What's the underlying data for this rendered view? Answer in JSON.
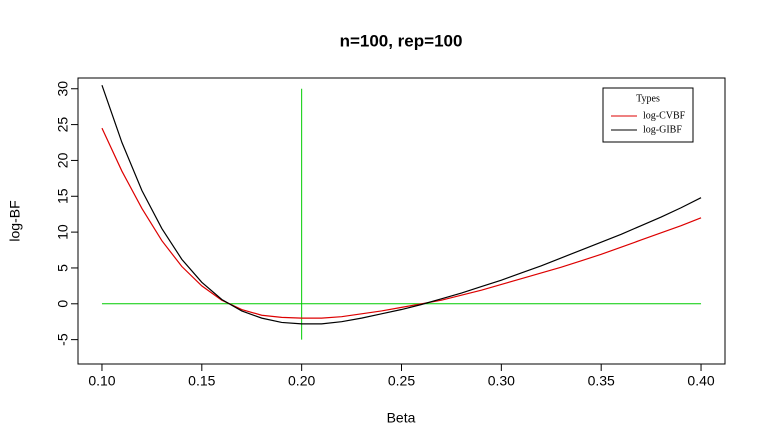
{
  "chart_data": {
    "type": "line",
    "title": "n=100, rep=100",
    "x_label": "Beta",
    "y_label": "log-BF",
    "x": [
      0.1,
      0.11,
      0.12,
      0.13,
      0.14,
      0.15,
      0.16,
      0.17,
      0.18,
      0.19,
      0.2,
      0.21,
      0.22,
      0.23,
      0.24,
      0.25,
      0.26,
      0.27,
      0.28,
      0.29,
      0.3,
      0.31,
      0.32,
      0.33,
      0.34,
      0.35,
      0.36,
      0.37,
      0.38,
      0.39,
      0.4
    ],
    "series": [
      {
        "name": "log-CVBF",
        "color": "#dd0000",
        "values": [
          24.5,
          18.5,
          13.3,
          8.8,
          5.2,
          2.5,
          0.5,
          -0.8,
          -1.6,
          -1.9,
          -2.0,
          -2.0,
          -1.8,
          -1.4,
          -1.0,
          -0.5,
          0,
          0.5,
          1.2,
          1.9,
          2.7,
          3.5,
          4.3,
          5.1,
          6.0,
          6.9,
          7.9,
          8.9,
          9.9,
          10.9,
          12.0
        ]
      },
      {
        "name": "log-GIBF",
        "color": "#000000",
        "values": [
          30.5,
          22.5,
          15.8,
          10.5,
          6.2,
          3.0,
          0.6,
          -1.0,
          -2.0,
          -2.6,
          -2.8,
          -2.8,
          -2.5,
          -2.0,
          -1.4,
          -0.8,
          -0.1,
          0.7,
          1.5,
          2.4,
          3.3,
          4.3,
          5.3,
          6.4,
          7.5,
          8.6,
          9.7,
          10.9,
          12.1,
          13.4,
          14.8
        ]
      }
    ],
    "reference_lines": [
      {
        "color": "#00cc00",
        "x": [
          0.1,
          0.4
        ],
        "y": [
          0,
          0
        ]
      },
      {
        "color": "#00cc00",
        "x": [
          0.2,
          0.2
        ],
        "y": [
          -5,
          30
        ]
      }
    ],
    "legend_title": "Types",
    "legend_position": "top-right",
    "xlim": [
      0.088,
      0.412
    ],
    "xticks": [
      {
        "value": 0.1,
        "label": "0.10"
      },
      {
        "value": 0.15,
        "label": "0.15"
      },
      {
        "value": 0.2,
        "label": "0.20"
      },
      {
        "value": 0.25,
        "label": "0.25"
      },
      {
        "value": 0.3,
        "label": "0.30"
      },
      {
        "value": 0.35,
        "label": "0.35"
      },
      {
        "value": 0.4,
        "label": "0.40"
      }
    ],
    "ylim": [
      -8.4,
      31.5
    ],
    "yticks": [
      -5,
      0,
      5,
      10,
      15,
      20,
      25,
      30
    ]
  }
}
